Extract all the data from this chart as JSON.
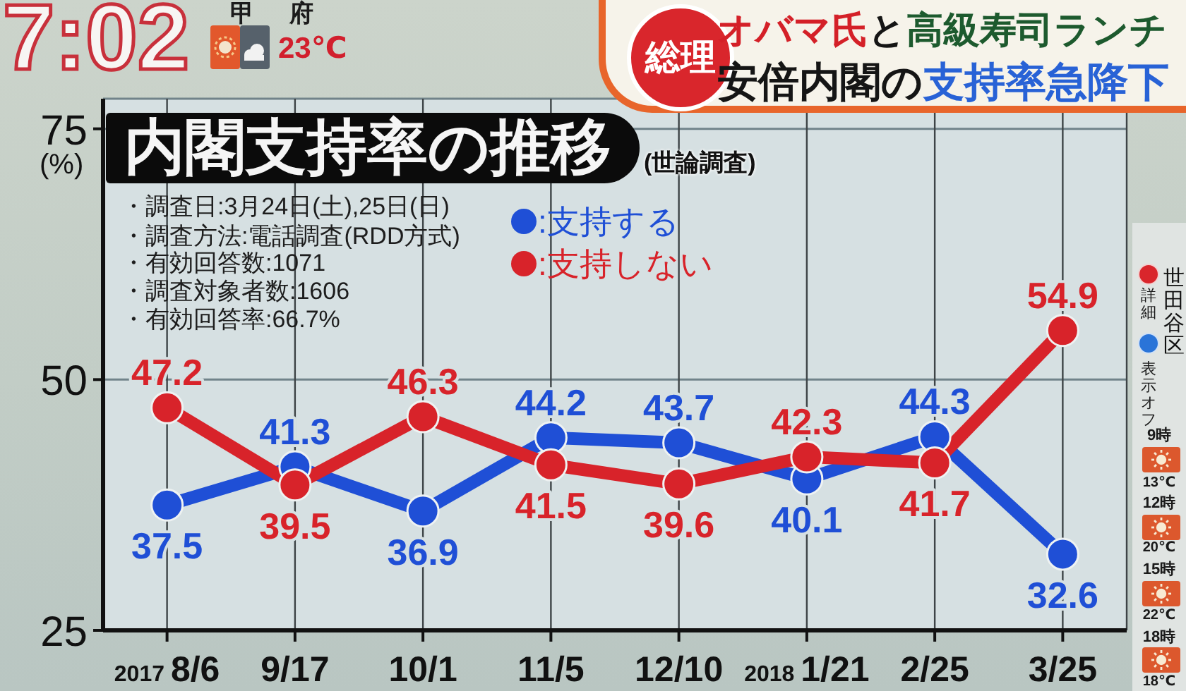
{
  "chart_data": {
    "type": "line",
    "title": "内閣支持率の推移",
    "subtitle": "(世論調査)",
    "ylabel": "(%)",
    "categories": [
      "2017 8/6",
      "9/17",
      "10/1",
      "11/5",
      "12/10",
      "2018 1/21",
      "2/25",
      "3/25"
    ],
    "series": [
      {
        "name": ":支持する",
        "color": "#1f4fd6",
        "values": [
          37.5,
          41.3,
          36.9,
          44.2,
          43.7,
          40.1,
          44.3,
          32.6
        ]
      },
      {
        "name": ":支持しない",
        "color": "#d8232a",
        "values": [
          47.2,
          39.5,
          46.3,
          41.5,
          39.6,
          42.3,
          41.7,
          54.9
        ]
      }
    ],
    "ylim": [
      25,
      78
    ],
    "yticks": [
      25,
      50,
      75
    ],
    "grid": true,
    "legend": "top",
    "marker": "circle",
    "line_style": "solid",
    "data_labels": true,
    "annotations": [
      "7:02",
      "甲府",
      "23℃",
      "総理",
      "オバマ氏",
      "と",
      "高級寿司ランチ",
      "安倍内閣の",
      "支持率急降下",
      "・調査日:3月24日(土),25日(日)",
      "・調査方法:電話調査(RDD方式)",
      "・有効回答数:1071",
      "・調査対象者数:1606",
      "・有効回答率:66.7%",
      "世田谷区",
      "詳細",
      "表示オフ",
      "9時",
      "13℃",
      "12時",
      "20℃",
      "15時",
      "22℃",
      "18時",
      "18℃"
    ]
  }
}
